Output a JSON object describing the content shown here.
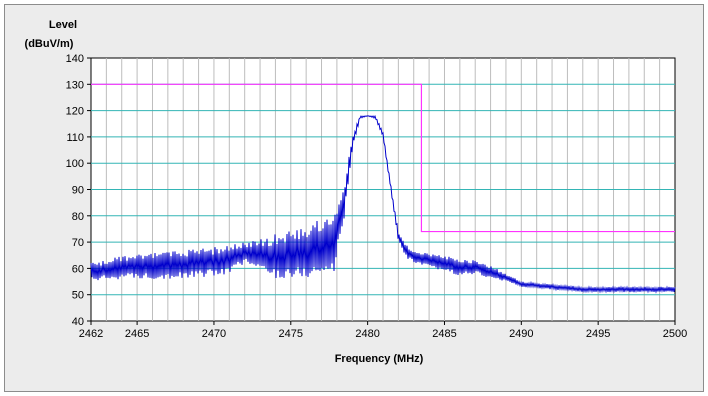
{
  "chart_data": {
    "type": "line",
    "title": "",
    "ylabel_line1": "Level",
    "ylabel_line2": "(dBuV/m)",
    "xlabel": "Frequency (MHz)",
    "xlim": [
      2462,
      2500
    ],
    "ylim": [
      40,
      140
    ],
    "x_ticks": [
      2462,
      2465,
      2470,
      2475,
      2480,
      2485,
      2490,
      2495,
      2500
    ],
    "y_ticks": [
      40,
      50,
      60,
      70,
      80,
      90,
      100,
      110,
      120,
      130,
      140
    ],
    "grid": true,
    "legend": "none",
    "colors": {
      "trace": "#0000cc",
      "limit": "#ff33ff",
      "grid_major": "#33b5b5",
      "grid_minor": "#bdbdbd"
    },
    "series": [
      {
        "role": "limit",
        "x": [
          2462,
          2483.5,
          2483.5,
          2500
        ],
        "y": [
          130,
          130,
          74,
          74
        ]
      },
      {
        "role": "measurement",
        "x": [
          2462,
          2464,
          2466,
          2468,
          2470,
          2471,
          2472,
          2473,
          2474,
          2475,
          2476,
          2477,
          2477.8,
          2478.5,
          2479,
          2479.5,
          2480,
          2480.5,
          2481,
          2481.5,
          2482,
          2482.5,
          2483,
          2484,
          2485,
          2486,
          2487,
          2488,
          2489,
          2490,
          2492,
          2494,
          2496,
          2498,
          2500
        ],
        "y_low": [
          55,
          56,
          56,
          56,
          57,
          58,
          62,
          59,
          56,
          56,
          56,
          57,
          58,
          80,
          105,
          117,
          118,
          117,
          110,
          90,
          70,
          64,
          62,
          60,
          59,
          57,
          58,
          56,
          55,
          53,
          52,
          51,
          51,
          51,
          51
        ],
        "y_high": [
          62,
          65,
          66,
          67,
          68,
          69,
          70,
          71,
          73,
          75,
          77,
          79,
          81,
          93,
          110,
          118,
          118,
          118,
          112,
          92,
          74,
          69,
          67,
          66,
          65,
          64,
          63,
          61,
          58,
          55,
          54,
          53,
          53,
          53,
          53
        ]
      }
    ]
  }
}
